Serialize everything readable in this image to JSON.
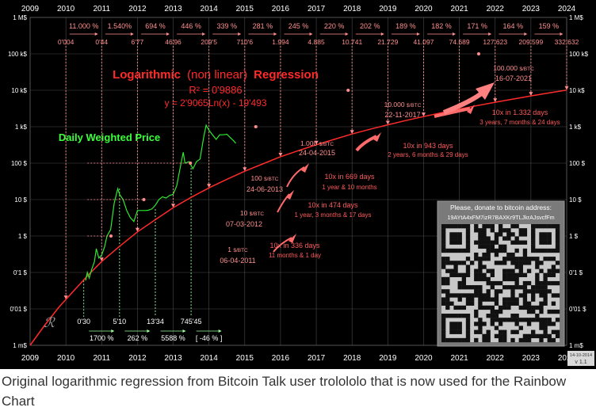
{
  "caption": "Original logarithmic regression from Bitcoin Talk user trolololo that is now used for the Rainbow Chart",
  "colors": {
    "background": "#000000",
    "regression": "#ff2b2b",
    "price": "#2ee82e",
    "annotation": "#ff8f8f",
    "growth": "#ff5a5a",
    "price_label": "#3cff3c",
    "green_dotted": "#9dff9d",
    "grid": "#4a4a4a"
  },
  "chart_data": {
    "type": "line",
    "x_ticks": [
      "2009",
      "2010",
      "2011",
      "2012",
      "2013",
      "2014",
      "2015",
      "2016",
      "2017",
      "2018",
      "2019",
      "2020",
      "2021",
      "2022",
      "2023",
      "2024"
    ],
    "y_scale": "log",
    "y_ticks": [
      {
        "value": 0.001,
        "label": "1 m$"
      },
      {
        "value": 0.01,
        "label": "0'01 $"
      },
      {
        "value": 0.1,
        "label": "0'1 $"
      },
      {
        "value": 1,
        "label": "1 $"
      },
      {
        "value": 10,
        "label": "10 $"
      },
      {
        "value": 100,
        "label": "100 $"
      },
      {
        "value": 1000,
        "label": "1 k$"
      },
      {
        "value": 10000,
        "label": "10 k$"
      },
      {
        "value": 100000,
        "label": "100 k$"
      },
      {
        "value": 1000000,
        "label": "1 M$"
      }
    ],
    "xlim": [
      2009,
      2024
    ],
    "ylim": [
      0.001,
      1000000
    ],
    "regression": {
      "title_part1": "Logarithmic",
      "title_part2": "(non linear)",
      "title_part3": "Regression",
      "r2": "R² = 0'9886",
      "formula": "y = 2'9065Ln(x) - 19'493",
      "points": [
        [
          2009.0,
          0.001
        ],
        [
          2009.4,
          0.0035
        ],
        [
          2009.8,
          0.011
        ],
        [
          2010.2,
          0.03
        ],
        [
          2010.6,
          0.08
        ],
        [
          2011.0,
          0.2
        ],
        [
          2011.5,
          0.52
        ],
        [
          2012.0,
          1.3
        ],
        [
          2012.5,
          2.8
        ],
        [
          2013.0,
          6.0
        ],
        [
          2013.5,
          11.5
        ],
        [
          2014.0,
          21
        ],
        [
          2014.5,
          36
        ],
        [
          2015.0,
          60
        ],
        [
          2015.5,
          95
        ],
        [
          2016.0,
          150
        ],
        [
          2016.5,
          220
        ],
        [
          2017.0,
          320
        ],
        [
          2017.5,
          450
        ],
        [
          2018.0,
          630
        ],
        [
          2018.5,
          850
        ],
        [
          2019.0,
          1130
        ],
        [
          2019.5,
          1480
        ],
        [
          2020.0,
          1900
        ],
        [
          2020.5,
          2420
        ],
        [
          2021.0,
          3050
        ],
        [
          2021.5,
          3800
        ],
        [
          2022.0,
          4700
        ],
        [
          2022.5,
          5750
        ],
        [
          2023.0,
          7000
        ],
        [
          2023.5,
          8450
        ],
        [
          2024.0,
          10100
        ]
      ]
    },
    "price_series": {
      "name": "Daily Weighted Price",
      "points": [
        [
          2010.55,
          0.06
        ],
        [
          2010.6,
          0.1
        ],
        [
          2010.65,
          0.07
        ],
        [
          2010.72,
          0.12
        ],
        [
          2010.8,
          0.2
        ],
        [
          2010.85,
          0.45
        ],
        [
          2010.92,
          0.25
        ],
        [
          2011.0,
          0.3
        ],
        [
          2011.08,
          0.5
        ],
        [
          2011.15,
          1.0
        ],
        [
          2011.25,
          1.5
        ],
        [
          2011.35,
          8.0
        ],
        [
          2011.45,
          20
        ],
        [
          2011.5,
          14
        ],
        [
          2011.6,
          10
        ],
        [
          2011.7,
          5
        ],
        [
          2011.8,
          3.2
        ],
        [
          2011.9,
          2.5
        ],
        [
          2012.0,
          5
        ],
        [
          2012.1,
          5
        ],
        [
          2012.2,
          5
        ],
        [
          2012.3,
          5.1
        ],
        [
          2012.4,
          5.5
        ],
        [
          2012.5,
          7
        ],
        [
          2012.6,
          10
        ],
        [
          2012.7,
          12
        ],
        [
          2012.8,
          11
        ],
        [
          2012.9,
          13
        ],
        [
          2013.0,
          14
        ],
        [
          2013.1,
          24
        ],
        [
          2013.2,
          80
        ],
        [
          2013.28,
          200
        ],
        [
          2013.33,
          100
        ],
        [
          2013.45,
          110
        ],
        [
          2013.55,
          70
        ],
        [
          2013.65,
          110
        ],
        [
          2013.75,
          130
        ],
        [
          2013.85,
          500
        ],
        [
          2013.92,
          1100
        ],
        [
          2014.0,
          800
        ],
        [
          2014.1,
          600
        ],
        [
          2014.2,
          450
        ],
        [
          2014.3,
          600
        ],
        [
          2014.4,
          600
        ],
        [
          2014.5,
          620
        ],
        [
          2014.6,
          500
        ],
        [
          2014.7,
          400
        ],
        [
          2014.75,
          350
        ]
      ]
    },
    "regression_markers": [
      {
        "x": 2010,
        "label": "0'004"
      },
      {
        "x": 2011,
        "label": "0'44"
      },
      {
        "x": 2012,
        "label": "6'77"
      },
      {
        "x": 2013,
        "label": "46'96"
      },
      {
        "x": 2014,
        "label": "209'5"
      },
      {
        "x": 2015,
        "label": "710'6"
      },
      {
        "x": 2016,
        "label": "1.994"
      },
      {
        "x": 2017,
        "label": "4.885"
      },
      {
        "x": 2018,
        "label": "10.741"
      },
      {
        "x": 2019,
        "label": "21.729"
      },
      {
        "x": 2020,
        "label": "41.097"
      },
      {
        "x": 2021,
        "label": "74.689"
      },
      {
        "x": 2022,
        "label": "127.623"
      },
      {
        "x": 2023,
        "label": "209.599"
      },
      {
        "x": 2024,
        "label": "332.632"
      }
    ],
    "yearly_growth": [
      {
        "x": 2010.5,
        "label": "11.000 %"
      },
      {
        "x": 2011.5,
        "label": "1.540%"
      },
      {
        "x": 2012.5,
        "label": "694 %"
      },
      {
        "x": 2013.5,
        "label": "446 %"
      },
      {
        "x": 2014.5,
        "label": "339 %"
      },
      {
        "x": 2015.5,
        "label": "281 %"
      },
      {
        "x": 2016.5,
        "label": "245 %"
      },
      {
        "x": 2017.5,
        "label": "220 %"
      },
      {
        "x": 2018.5,
        "label": "202 %"
      },
      {
        "x": 2019.5,
        "label": "189 %"
      },
      {
        "x": 2020.5,
        "label": "182 %"
      },
      {
        "x": 2021.5,
        "label": "171 %"
      },
      {
        "x": 2022.5,
        "label": "164 %"
      },
      {
        "x": 2023.5,
        "label": "159 %"
      }
    ],
    "milestones": [
      {
        "price": "1",
        "unit": "$/BTC",
        "date": "06-04-2011",
        "x": 2011.26,
        "y": 1
      },
      {
        "price": "10",
        "unit": "$/BTC",
        "date": "07-03-2012",
        "x": 2012.18,
        "y": 10
      },
      {
        "price": "100",
        "unit": "$/BTC",
        "date": "24-06-2013",
        "x": 2013.48,
        "y": 100
      },
      {
        "price": "1.000",
        "unit": "$/BTC",
        "date": "24-04-2015",
        "x": 2015.31,
        "y": 1000
      },
      {
        "price": "10.000",
        "unit": "$/BTC",
        "date": "22-11-2017",
        "x": 2017.89,
        "y": 10000
      },
      {
        "price": "100.000",
        "unit": "$/BTC",
        "date": "16-07-2021",
        "x": 2021.54,
        "y": 100000
      }
    ],
    "milestone_intervals": [
      {
        "line1": "10x in 336 days",
        "line2": "11 months & 1 day"
      },
      {
        "line1": "10x in 474 days",
        "line2": "1 year, 3 months & 17 days"
      },
      {
        "line1": "10x in 669 days",
        "line2": "1 year & 10 months"
      },
      {
        "line1": "10x in 943 days",
        "line2": "2 years, 6 months & 29 days"
      },
      {
        "line1": "10x in 1.332 days",
        "line2": "3 years, 7 months & 24 days"
      }
    ],
    "actual_marks": [
      {
        "x": 2010.5,
        "label": "0'30"
      },
      {
        "x": 2011.5,
        "label": "5'10"
      },
      {
        "x": 2012.5,
        "label": "13'34"
      },
      {
        "x": 2013.5,
        "label": "745'45"
      }
    ],
    "actual_growth": [
      {
        "label": "1700 %"
      },
      {
        "label": "262 %"
      },
      {
        "label": "5588 %"
      },
      {
        "label": "[ -46 % ]"
      }
    ]
  },
  "donate": {
    "title": "Please, donate to bitcoin address:",
    "address": "19AYtA4xFM7izR7BAXKr9TLJkrAJsvcfFm"
  },
  "version": {
    "date": "14-10-2014",
    "label": "v 1.1"
  }
}
